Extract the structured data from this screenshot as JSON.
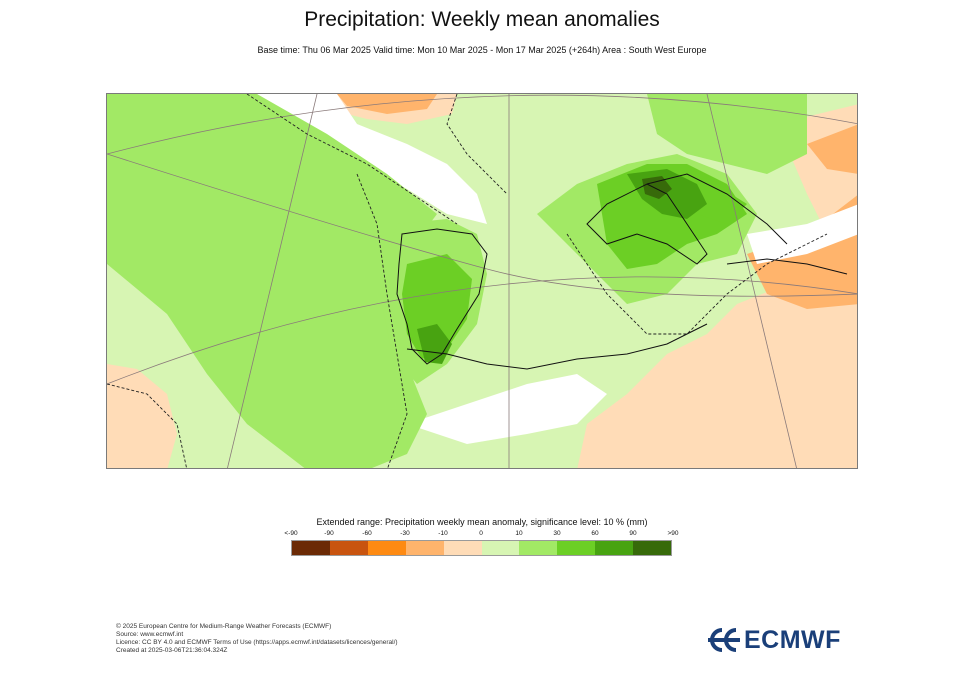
{
  "header": {
    "title": "Precipitation: Weekly mean anomalies",
    "subtitle": "Base time: Thu 06 Mar 2025 Valid time: Mon 10 Mar 2025 - Mon 17 Mar 2025 (+264h) Area : South West Europe"
  },
  "legend": {
    "title": "Extended range: Precipitation weekly mean anomaly, significance level: 10 % (mm)",
    "labels": [
      "<-90",
      "-90",
      "-60",
      "-30",
      "-10",
      "0",
      "10",
      "30",
      "60",
      "90",
      ">90"
    ],
    "colors": [
      "#6b2a05",
      "#c8540f",
      "#fe8a12",
      "#ffb46c",
      "#ffdcb7",
      "#d7f5b3",
      "#a2e965",
      "#6ccf25",
      "#48a311",
      "#376a0a"
    ]
  },
  "map": {
    "background_color": "#ffffff",
    "coastline_color": "#111111",
    "border_color": "#555555",
    "gridline_color": "#8a7a7a",
    "significance_line": "dashed"
  },
  "footer": {
    "line1": "© 2025 European Centre for Medium-Range Weather Forecasts (ECMWF)",
    "line2": "Source: www.ecmwf.int",
    "line3": "Licence: CC BY 4.0 and ECMWF Terms of Use (https://apps.ecmwf.int/datasets/licences/general/)",
    "line4": "Created at 2025-03-06T21:36:04.324Z"
  },
  "logo": {
    "text": "ECMWF",
    "color": "#1a3f79"
  }
}
